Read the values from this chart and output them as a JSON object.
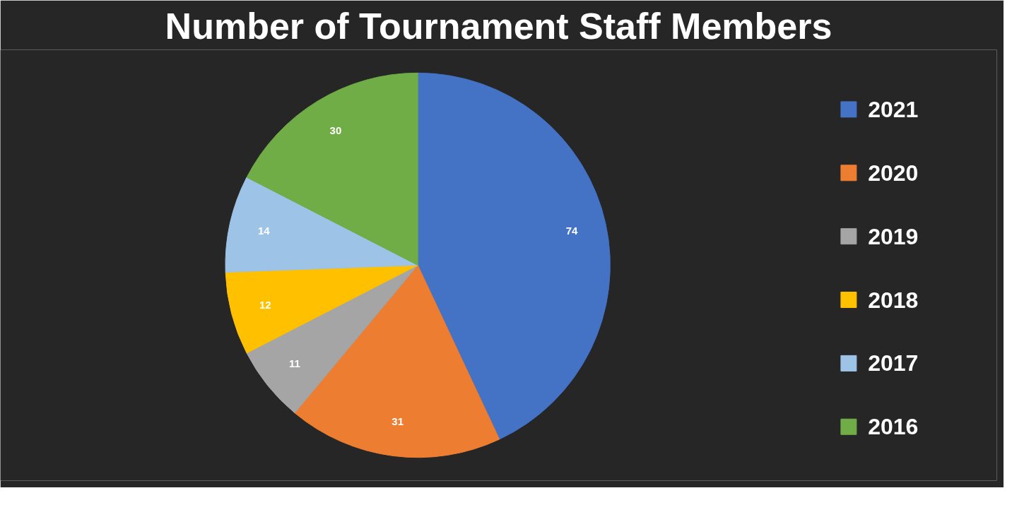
{
  "chart_data": {
    "type": "pie",
    "title": "Number of Tournament Staff Members",
    "categories": [
      "2021",
      "2020",
      "2019",
      "2018",
      "2017",
      "2016"
    ],
    "values": [
      74,
      31,
      11,
      12,
      14,
      30
    ],
    "colors": [
      "#4472c4",
      "#ed7d31",
      "#a5a5a5",
      "#ffc000",
      "#9dc3e6",
      "#70ad47"
    ],
    "data_labels": true,
    "legend": "right"
  }
}
